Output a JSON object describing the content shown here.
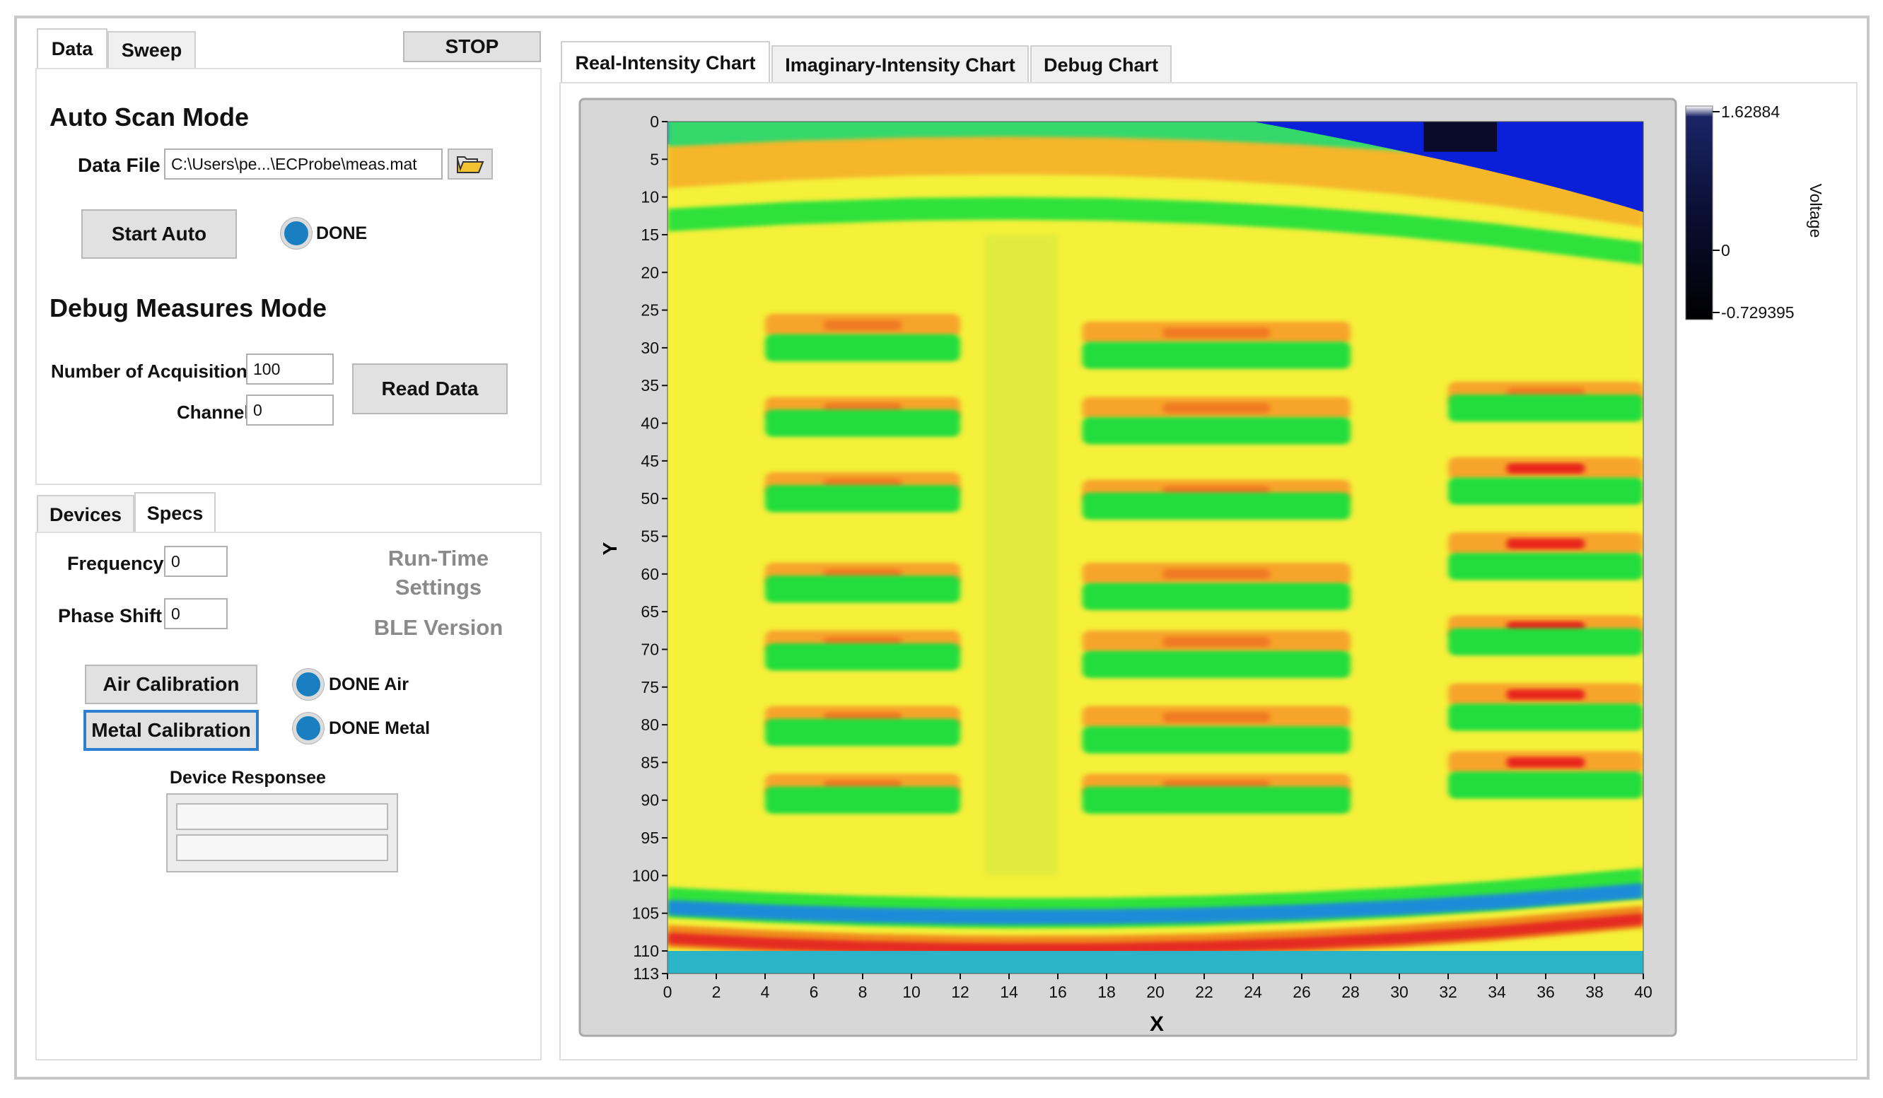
{
  "left_tabs": {
    "data": "Data",
    "sweep": "Sweep",
    "stop": "STOP"
  },
  "auto_scan": {
    "heading": "Auto Scan Mode",
    "data_file_label": "Data File",
    "data_file_value": "C:\\Users\\pe...\\ECProbe\\meas.mat",
    "start_button": "Start Auto",
    "done_label": "DONE"
  },
  "debug_mode": {
    "heading": "Debug Measures Mode",
    "acq_label": "Number of Acquisitions",
    "acq_value": "100",
    "channel_label": "Channel",
    "channel_value": "0",
    "read_button": "Read Data"
  },
  "bottom_tabs": {
    "devices": "Devices",
    "specs": "Specs"
  },
  "specs": {
    "frequency_label": "Frequency",
    "frequency_value": "0",
    "phase_label": "Phase Shift",
    "phase_value": "0",
    "runtime_line1": "Run-Time",
    "runtime_line2": "Settings",
    "ble_version": "BLE Version",
    "air_button": "Air Calibration",
    "metal_button": "Metal Calibration",
    "done_air": "DONE Air",
    "done_metal": "DONE Metal",
    "response_label": "Device Responsee"
  },
  "chart_tabs": [
    "Real-Intensity Chart",
    "Imaginary-Intensity Chart",
    "Debug Chart"
  ],
  "colors": {
    "led": "#1a7fc1",
    "focus": "#2f7fd0"
  },
  "chart_data": {
    "type": "heatmap",
    "xlabel": "X",
    "ylabel": "Y",
    "xlim": [
      0,
      40
    ],
    "ylim": [
      0,
      113
    ],
    "x_ticks": [
      0,
      2,
      4,
      6,
      8,
      10,
      12,
      14,
      16,
      18,
      20,
      22,
      24,
      26,
      28,
      30,
      32,
      34,
      36,
      38,
      40
    ],
    "y_ticks": [
      0,
      5,
      10,
      15,
      20,
      25,
      30,
      35,
      40,
      45,
      50,
      55,
      60,
      65,
      70,
      75,
      80,
      85,
      90,
      95,
      100,
      105,
      110,
      113
    ],
    "colorbar": {
      "label": "Voltage",
      "ticks": [
        "1.62884",
        "0",
        "-0.729395"
      ],
      "max": 1.62884,
      "min": -0.729395
    },
    "features": [
      {
        "name": "background",
        "value": "yellow"
      },
      {
        "name": "curved band near top",
        "x_range": [
          0,
          40
        ],
        "y": [
          10,
          16
        ]
      },
      {
        "name": "curved band near bottom",
        "x_range": [
          0,
          40
        ],
        "y": [
          104,
          112
        ]
      },
      {
        "name": "stripe group left",
        "x_range": [
          4,
          12
        ],
        "y_centers": [
          27,
          30,
          38,
          40,
          48,
          50,
          60,
          62,
          69,
          71,
          79,
          81,
          88,
          90
        ]
      },
      {
        "name": "stripe group center",
        "x_range": [
          17,
          28
        ],
        "y_centers": [
          28,
          31,
          38,
          41,
          49,
          51,
          60,
          63,
          69,
          72,
          79,
          82,
          88,
          90
        ]
      },
      {
        "name": "stripe group right",
        "x_range": [
          32,
          40
        ],
        "y_centers": [
          36,
          38,
          46,
          49,
          56,
          59,
          67,
          69,
          76,
          79,
          85,
          88
        ]
      },
      {
        "name": "dark corner",
        "x_range": [
          25,
          40
        ],
        "y_range": [
          0,
          12
        ],
        "value": "blue"
      }
    ]
  }
}
